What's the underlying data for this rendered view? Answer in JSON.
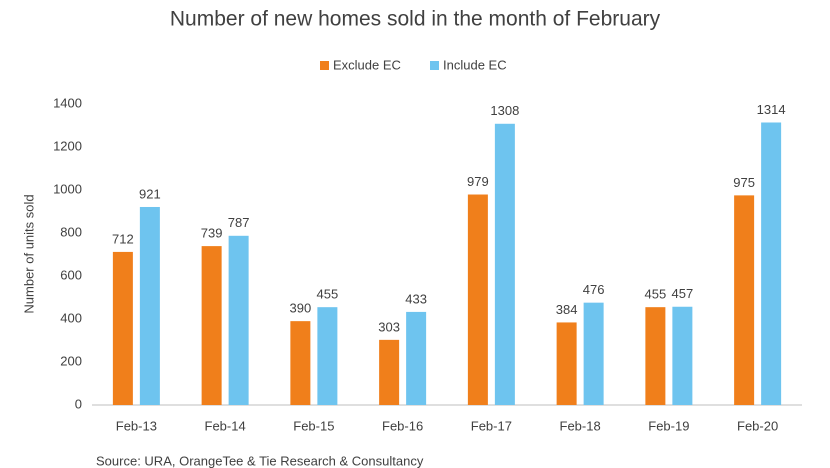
{
  "chart_data": {
    "type": "bar",
    "title": "Number of new homes sold in the month of February",
    "y_label": "Number  of units sold",
    "source": "Source: URA, OrangeTee & Tie Research & Consultancy",
    "categories": [
      "Feb-13",
      "Feb-14",
      "Feb-15",
      "Feb-16",
      "Feb-17",
      "Feb-18",
      "Feb-19",
      "Feb-20"
    ],
    "series": [
      {
        "name": "Exclude EC",
        "color": "#f07f1b",
        "values": [
          712,
          739,
          390,
          303,
          979,
          384,
          455,
          975
        ]
      },
      {
        "name": "Include EC",
        "color": "#6ec4ef",
        "values": [
          921,
          787,
          455,
          433,
          1308,
          476,
          457,
          1314
        ]
      }
    ],
    "ylim": [
      0,
      1400
    ],
    "yticks": [
      0,
      200,
      400,
      600,
      800,
      1000,
      1200,
      1400
    ],
    "grid": false,
    "legend": "top"
  }
}
